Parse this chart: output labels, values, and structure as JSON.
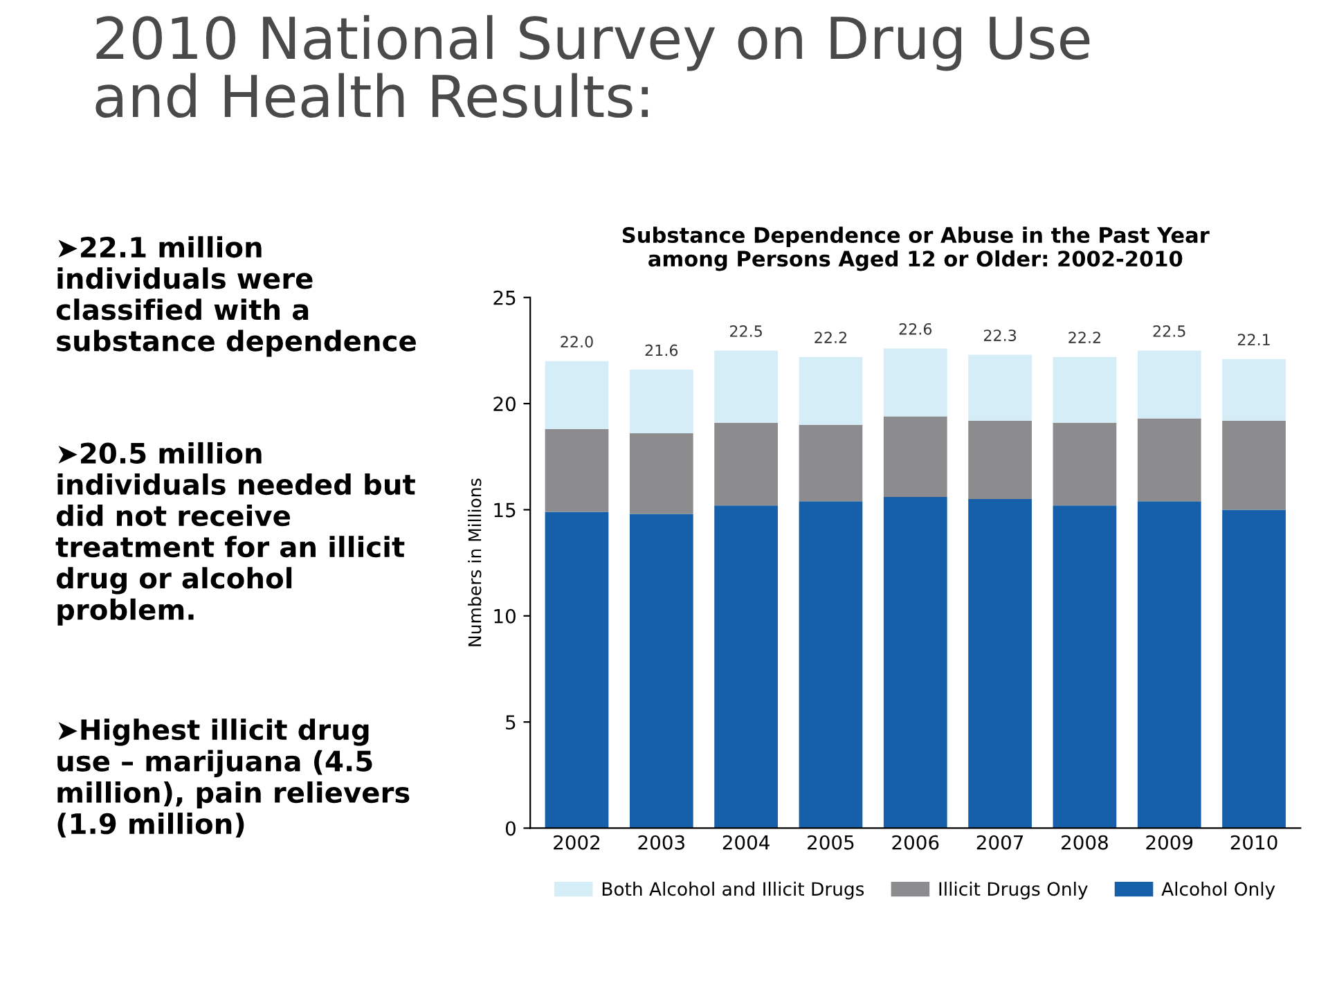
{
  "chart_data": {
    "type": "bar",
    "stacked": true,
    "title": "2010 National Survey on Drug Use\nand Health Results:",
    "subtitle": "Substance Dependence or Abuse in the Past Year\namong Persons Aged 12 or Older: 2002-2010",
    "ylabel": "Numbers in Millions",
    "categories": [
      "2002",
      "2003",
      "2004",
      "2005",
      "2006",
      "2007",
      "2008",
      "2009",
      "2010"
    ],
    "series": [
      {
        "name": "Alcohol Only",
        "color": "#1560a8",
        "values": [
          14.9,
          14.8,
          15.2,
          15.4,
          15.6,
          15.5,
          15.2,
          15.4,
          15.0
        ]
      },
      {
        "name": "Illicit Drugs Only",
        "color": "#8c8c8e",
        "values": [
          3.9,
          3.8,
          3.9,
          3.6,
          3.8,
          3.7,
          3.9,
          3.9,
          4.2
        ]
      },
      {
        "name": "Both Alcohol and Illicit Drugs",
        "color": "#d5edf6",
        "values": [
          3.2,
          3.0,
          3.4,
          3.2,
          3.2,
          3.1,
          3.1,
          3.2,
          2.9
        ]
      }
    ],
    "totals": [
      "22.0",
      "21.6",
      "22.5",
      "22.2",
      "22.6",
      "22.3",
      "22.2",
      "22.5",
      "22.1"
    ],
    "ylim": [
      0,
      25
    ],
    "yticks": [
      0,
      5,
      10,
      15,
      20,
      25
    ],
    "grid": false,
    "legend": "bottom",
    "annotations": [
      "➤22.1 million\nindividuals were\nclassified with a\nsubstance dependence",
      "➤20.5 million\nindividuals needed but\ndid not receive\ntreatment for an illicit\ndrug or alcohol\nproblem.",
      "➤Highest illicit drug\nuse – marijuana (4.5\nmillion), pain relievers\n(1.9 million)"
    ]
  }
}
